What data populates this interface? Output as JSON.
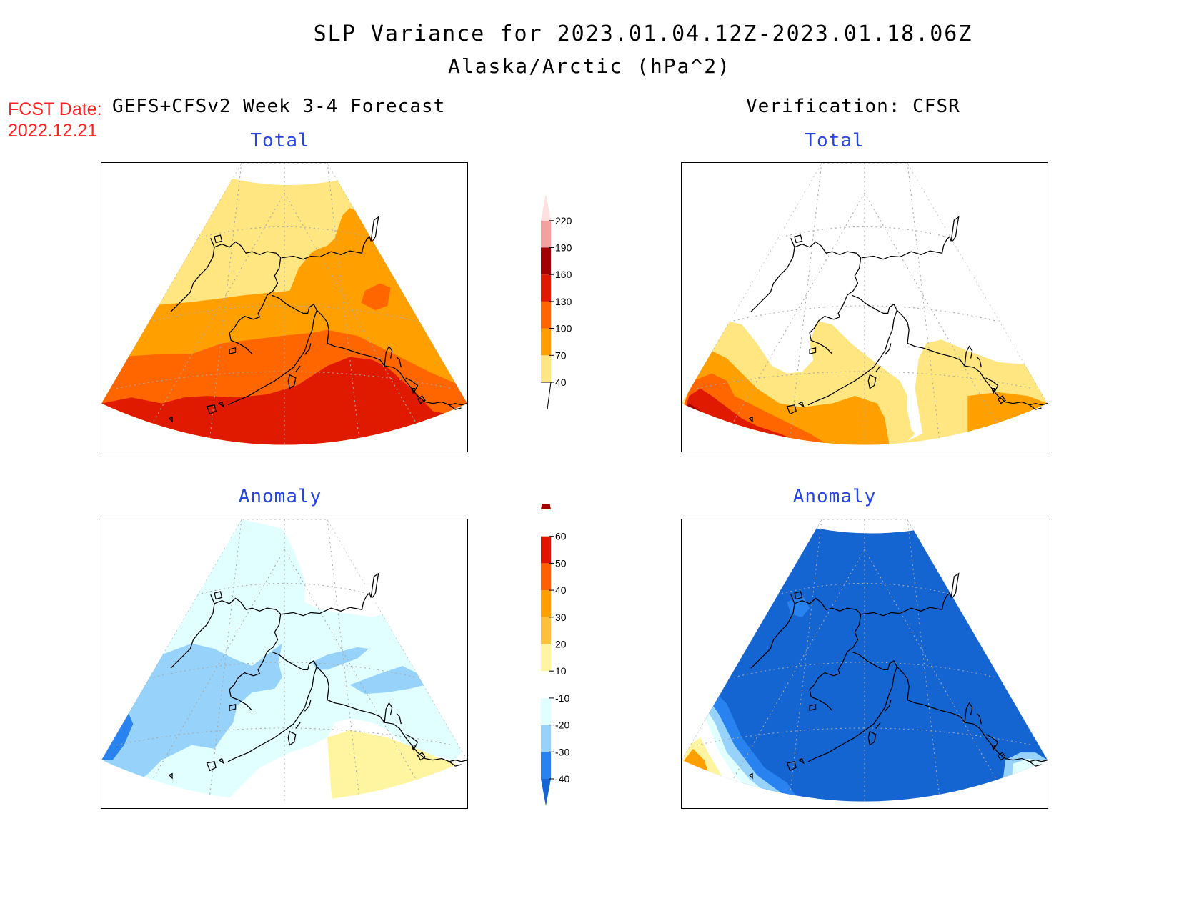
{
  "title": {
    "line1": "SLP Variance for 2023.01.04.12Z-2023.01.18.06Z",
    "line2": "Alaska/Arctic (hPa^2)"
  },
  "forecast_date": {
    "label": "FCST Date:",
    "value": "2022.12.21"
  },
  "left_header": "GEFS+CFSv2 Week 3-4 Forecast",
  "right_header": "Verification: CFSR",
  "panels": {
    "fcst_total": {
      "title": "Total"
    },
    "verif_total": {
      "title": "Total"
    },
    "fcst_anomaly": {
      "title": "Anomaly"
    },
    "verif_anomaly": {
      "title": "Anomaly"
    }
  },
  "total_colorbar": {
    "levels": [
      "40",
      "70",
      "100",
      "130",
      "160",
      "190",
      "220"
    ],
    "colors": [
      "#ffe680",
      "#ffa000",
      "#ff6600",
      "#e01a00",
      "#a00000",
      "#f4a0a0",
      "#fde0e0"
    ],
    "colors_meaning": "fill colors from lowest (<40 white) upward; top is open-ended"
  },
  "anomaly_colorbar": {
    "levels": [
      "-40",
      "-30",
      "-20",
      "-10",
      "10",
      "20",
      "30",
      "40",
      "50",
      "60"
    ],
    "colors": [
      "#1464d2",
      "#2882f0",
      "#96d2fa",
      "#e1ffff",
      "#ffffff",
      "#fff5a0",
      "#ffc03c",
      "#ffa000",
      "#ff6000",
      "#e11400",
      "#a50000"
    ]
  },
  "map_colors": {
    "white": "#ffffff",
    "c40": "#ffe680",
    "c70": "#ffa000",
    "c100": "#ff6600",
    "c130": "#e01a00",
    "c160": "#a00000",
    "a_m40": "#1464d2",
    "a_m30": "#2882f0",
    "a_m20": "#96d2fa",
    "a_m10": "#e1ffff",
    "a_p10": "#fff5a0",
    "a_p30": "#ffa000"
  }
}
